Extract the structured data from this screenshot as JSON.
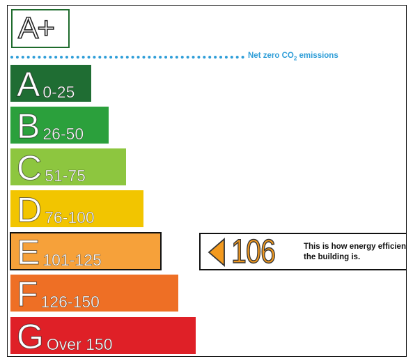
{
  "top_rating": {
    "label": "A+",
    "color": "#1e6b2c"
  },
  "net_zero": {
    "label_prefix": "Net zero CO",
    "label_sub": "2",
    "label_suffix": " emissions",
    "color": "#2f9ed8"
  },
  "bands": [
    {
      "letter": "A",
      "range": "0-25",
      "color": "#1f6d33"
    },
    {
      "letter": "B",
      "range": "26-50",
      "color": "#2ba03c"
    },
    {
      "letter": "C",
      "range": "51-75",
      "color": "#8dc63f"
    },
    {
      "letter": "D",
      "range": "76-100",
      "color": "#f2c500"
    },
    {
      "letter": "E",
      "range": "101-125",
      "color": "#f6a13a"
    },
    {
      "letter": "F",
      "range": "126-150",
      "color": "#ee6f25"
    },
    {
      "letter": "G",
      "range": "Over 150",
      "color": "#df2027"
    }
  ],
  "current": {
    "band": "E",
    "score": "106",
    "description": "This is how energy efficient the building is.",
    "arrow_color": "#f39a1f"
  }
}
